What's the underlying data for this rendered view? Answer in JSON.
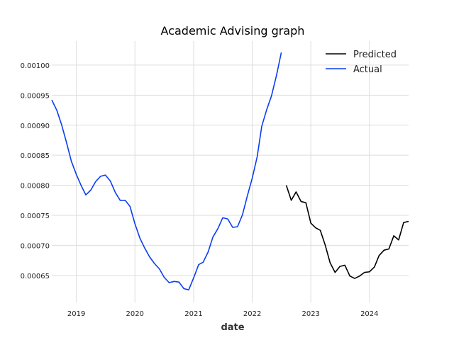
{
  "chart_data": {
    "type": "line",
    "title": "Academic Advising graph",
    "xlabel": "date",
    "ylabel": "",
    "xlim": [
      "2018-08-01",
      "2024-09-01"
    ],
    "ylim": [
      0.000605,
      0.00104
    ],
    "x_ticks": [
      "2019",
      "2020",
      "2021",
      "2022",
      "2023",
      "2024"
    ],
    "y_ticks": [
      "0.00065",
      "0.00070",
      "0.00075",
      "0.00080",
      "0.00085",
      "0.00090",
      "0.00095",
      "0.00100"
    ],
    "y_tick_values": [
      0.00065,
      0.0007,
      0.00075,
      0.0008,
      0.00085,
      0.0009,
      0.00095,
      0.001
    ],
    "grid": true,
    "legend_position": "top-right",
    "series": [
      {
        "name": "Predicted",
        "color": "#000000",
        "points": [
          [
            "2022-08-01",
            0.0008
          ],
          [
            "2022-09-01",
            0.000775
          ],
          [
            "2022-10-01",
            0.000789
          ],
          [
            "2022-11-01",
            0.000773
          ],
          [
            "2022-12-01",
            0.000771
          ],
          [
            "2023-01-01",
            0.000737
          ],
          [
            "2023-02-01",
            0.000729
          ],
          [
            "2023-03-01",
            0.000725
          ],
          [
            "2023-04-01",
            0.0007
          ],
          [
            "2023-05-01",
            0.000671
          ],
          [
            "2023-06-01",
            0.000655
          ],
          [
            "2023-07-01",
            0.000665
          ],
          [
            "2023-08-01",
            0.000667
          ],
          [
            "2023-09-01",
            0.000649
          ],
          [
            "2023-10-01",
            0.000645
          ],
          [
            "2023-11-01",
            0.000649
          ],
          [
            "2023-12-01",
            0.000655
          ],
          [
            "2024-01-01",
            0.000656
          ],
          [
            "2024-02-01",
            0.000664
          ],
          [
            "2024-03-01",
            0.000683
          ],
          [
            "2024-04-01",
            0.000692
          ],
          [
            "2024-05-01",
            0.000694
          ],
          [
            "2024-06-01",
            0.000716
          ],
          [
            "2024-07-01",
            0.000709
          ],
          [
            "2024-08-01",
            0.000738
          ],
          [
            "2024-09-01",
            0.00074
          ]
        ]
      },
      {
        "name": "Actual",
        "color": "#0b3ef0",
        "points": [
          [
            "2018-08-01",
            0.000942
          ],
          [
            "2018-09-01",
            0.000925
          ],
          [
            "2018-10-01",
            0.000901
          ],
          [
            "2018-11-01",
            0.000871
          ],
          [
            "2018-12-01",
            0.00084
          ],
          [
            "2019-01-01",
            0.000818
          ],
          [
            "2019-02-01",
            0.000799
          ],
          [
            "2019-03-01",
            0.000784
          ],
          [
            "2019-04-01",
            0.000792
          ],
          [
            "2019-05-01",
            0.000806
          ],
          [
            "2019-06-01",
            0.000815
          ],
          [
            "2019-07-01",
            0.000817
          ],
          [
            "2019-08-01",
            0.000807
          ],
          [
            "2019-09-01",
            0.000788
          ],
          [
            "2019-10-01",
            0.000775
          ],
          [
            "2019-11-01",
            0.000775
          ],
          [
            "2019-12-01",
            0.000765
          ],
          [
            "2020-01-01",
            0.000736
          ],
          [
            "2020-02-01",
            0.000712
          ],
          [
            "2020-03-01",
            0.000696
          ],
          [
            "2020-04-01",
            0.000681
          ],
          [
            "2020-05-01",
            0.00067
          ],
          [
            "2020-06-01",
            0.000661
          ],
          [
            "2020-07-01",
            0.000647
          ],
          [
            "2020-08-01",
            0.000638
          ],
          [
            "2020-09-01",
            0.00064
          ],
          [
            "2020-10-01",
            0.000639
          ],
          [
            "2020-11-01",
            0.000628
          ],
          [
            "2020-12-01",
            0.000626
          ],
          [
            "2021-01-01",
            0.000646
          ],
          [
            "2021-02-01",
            0.000668
          ],
          [
            "2021-03-01",
            0.000672
          ],
          [
            "2021-04-01",
            0.000689
          ],
          [
            "2021-05-01",
            0.000714
          ],
          [
            "2021-06-01",
            0.000728
          ],
          [
            "2021-07-01",
            0.000746
          ],
          [
            "2021-08-01",
            0.000744
          ],
          [
            "2021-09-01",
            0.00073
          ],
          [
            "2021-10-01",
            0.000731
          ],
          [
            "2021-11-01",
            0.000751
          ],
          [
            "2021-12-01",
            0.000782
          ],
          [
            "2022-01-01",
            0.000812
          ],
          [
            "2022-02-01",
            0.000848
          ],
          [
            "2022-03-01",
            0.000898
          ],
          [
            "2022-04-01",
            0.000926
          ],
          [
            "2022-05-01",
            0.000949
          ],
          [
            "2022-06-01",
            0.000983
          ],
          [
            "2022-07-01",
            0.001021
          ]
        ]
      }
    ]
  },
  "colors": {
    "grid": "#dddddd",
    "background": "#ffffff",
    "text": "#222222"
  }
}
